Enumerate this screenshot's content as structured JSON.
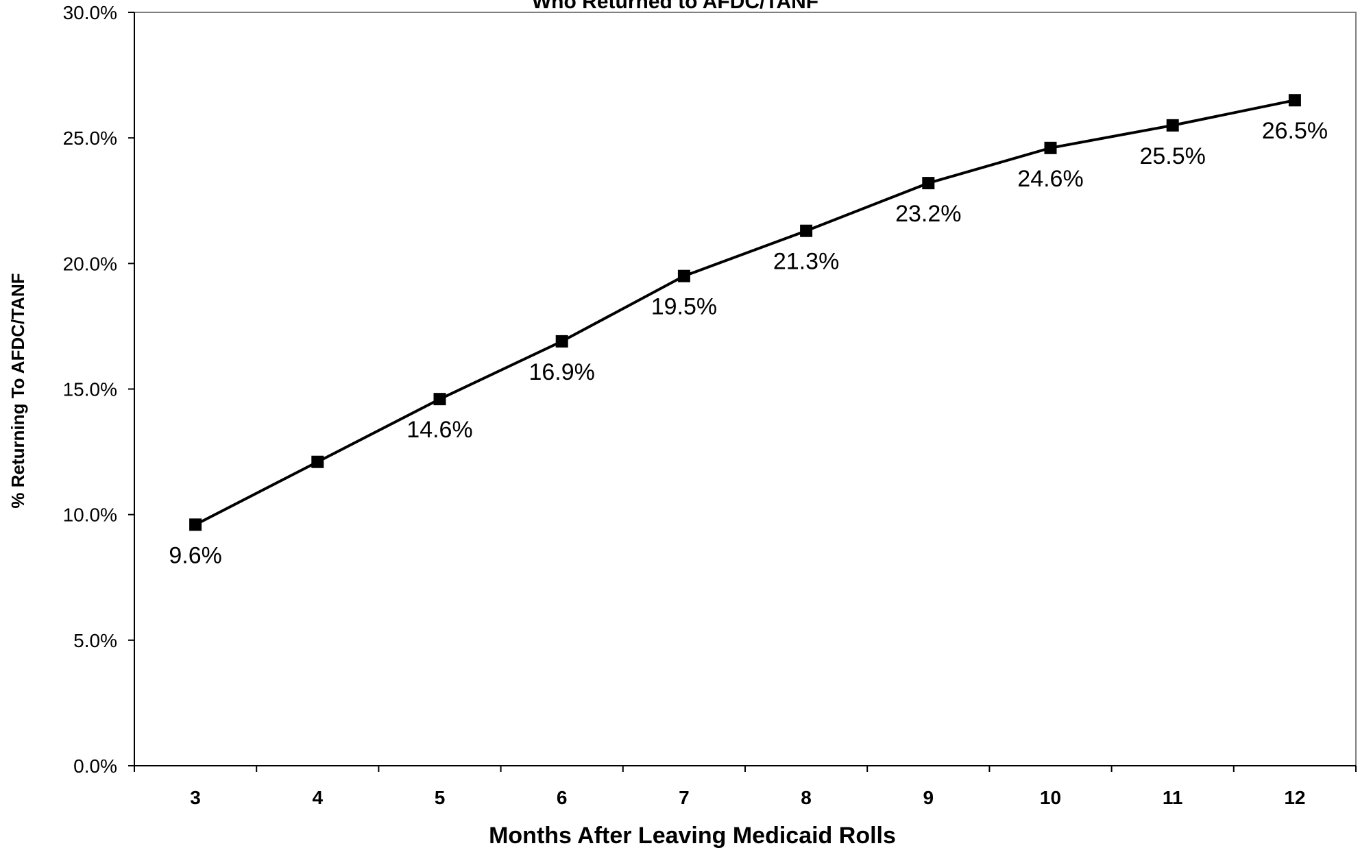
{
  "chart_data": {
    "type": "line",
    "title": "Who Returned to AFDC/TANF",
    "xlabel": "Months After Leaving Medicaid Rolls",
    "ylabel": "% Returning To AFDC/TANF",
    "categories": [
      "3",
      "4",
      "5",
      "6",
      "7",
      "8",
      "9",
      "10",
      "11",
      "12"
    ],
    "series": [
      {
        "values": [
          9.6,
          12.1,
          14.6,
          16.9,
          19.5,
          21.3,
          23.2,
          24.6,
          25.5,
          26.5
        ],
        "data_labels": [
          "9.6%",
          "",
          "14.6%",
          "16.9%",
          "19.5%",
          "21.3%",
          "23.2%",
          "24.6%",
          "25.5%",
          "26.5%"
        ],
        "color": "#000000",
        "marker": "square"
      }
    ],
    "ylim": [
      0,
      30
    ],
    "yticks": [
      "0.0%",
      "5.0%",
      "10.0%",
      "15.0%",
      "20.0%",
      "25.0%",
      "30.0%"
    ],
    "grid": false,
    "legend": "none"
  }
}
